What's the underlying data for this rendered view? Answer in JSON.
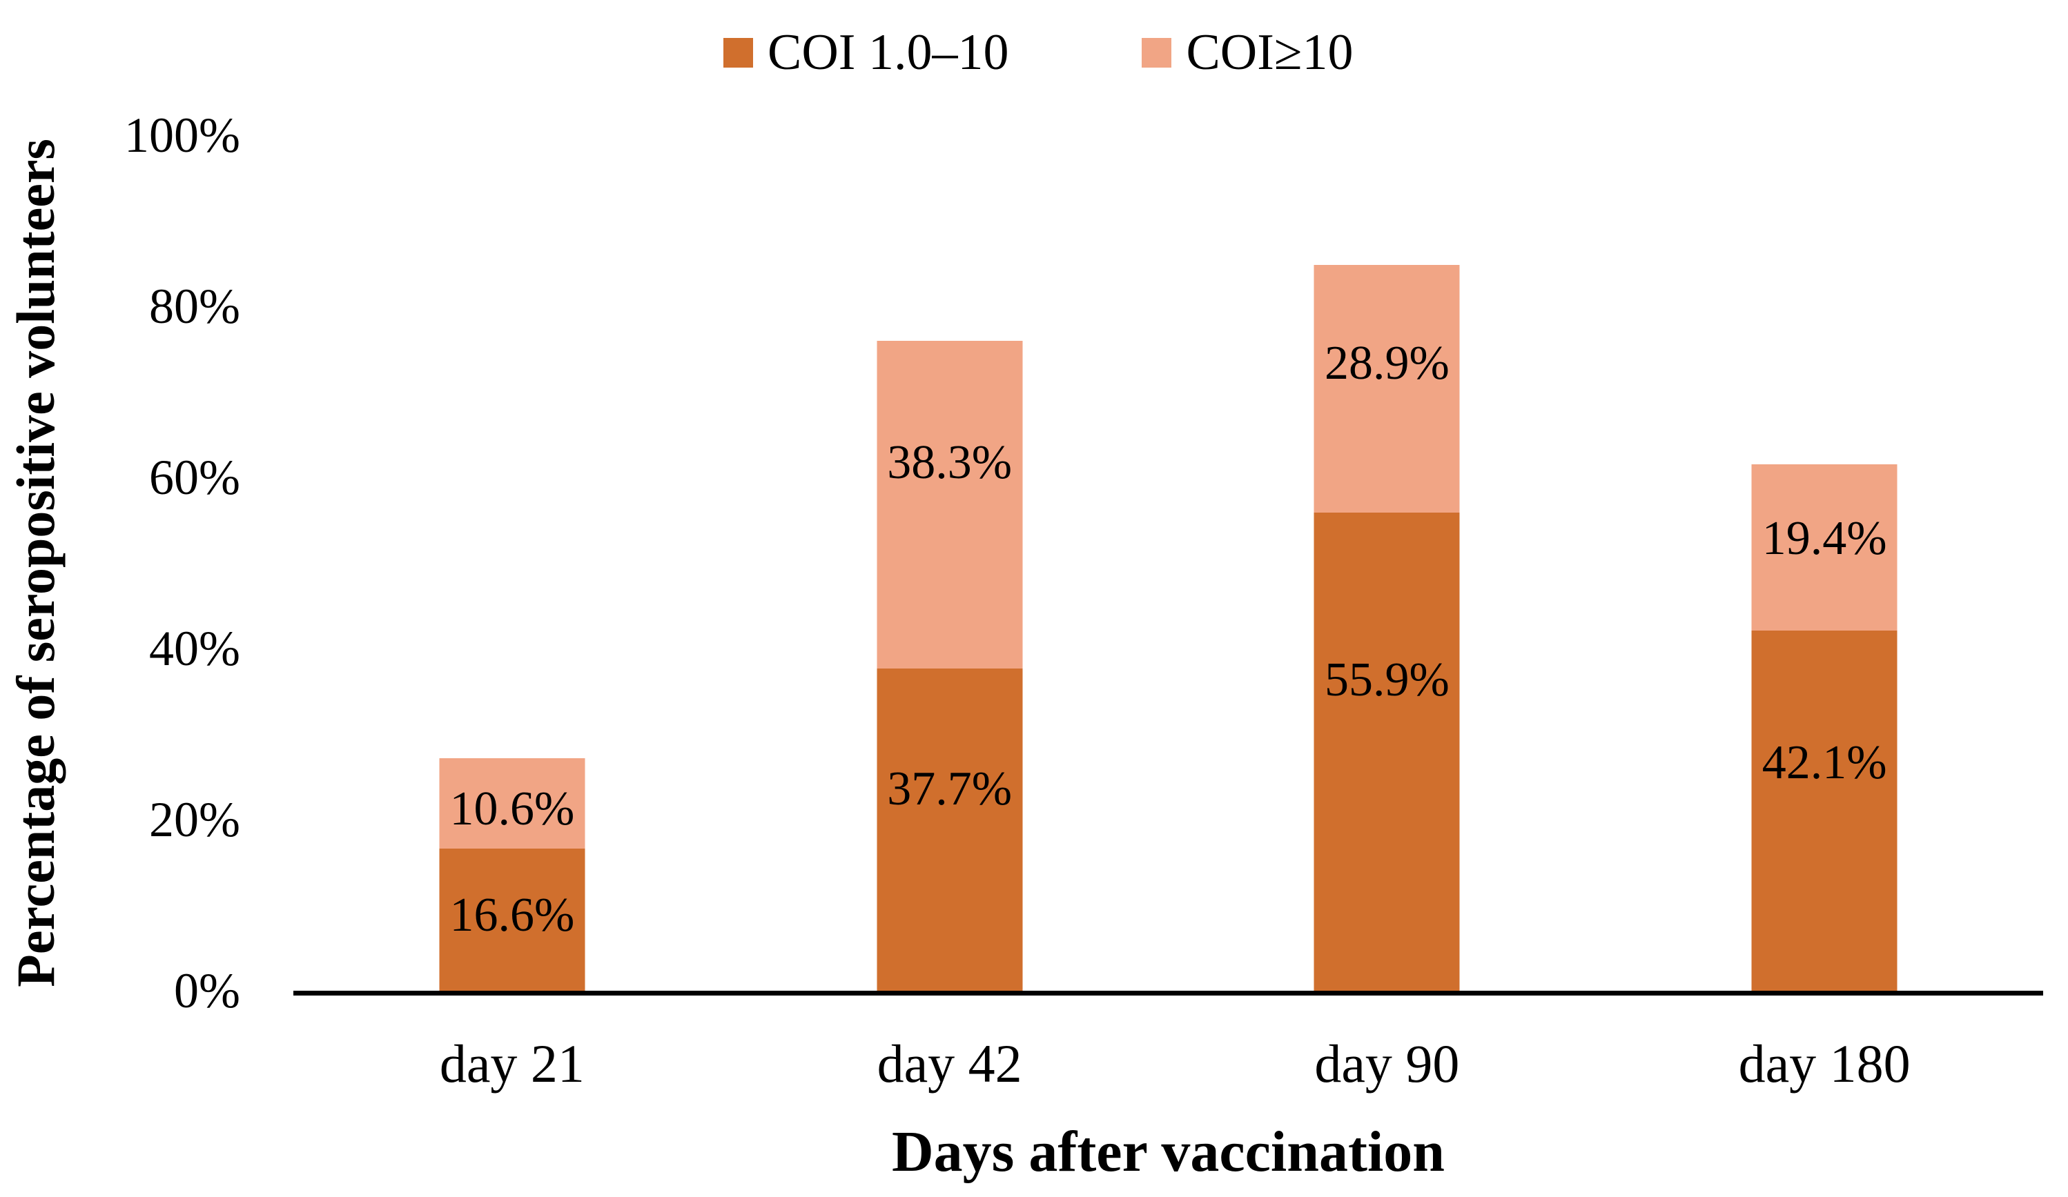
{
  "chart_data": {
    "type": "bar",
    "stacked": true,
    "title": "",
    "xlabel": "Days after vaccination",
    "ylabel": "Percentage of seropositive volunteers",
    "categories": [
      "day 21",
      "day 42",
      "day 90",
      "day 180"
    ],
    "series": [
      {
        "name": "COI 1.0–10",
        "color": "#D06F2D",
        "values": [
          16.6,
          37.7,
          55.9,
          42.1
        ],
        "labels": [
          "16.6%",
          "37.7%",
          "55.9%",
          "42.1%"
        ]
      },
      {
        "name": "COI≥10",
        "color": "#F1A585",
        "values": [
          10.6,
          38.3,
          28.9,
          19.4
        ],
        "labels": [
          "10.6%",
          "38.3%",
          "28.9%",
          "19.4%"
        ]
      }
    ],
    "totals": [
      27.2,
      76.0,
      84.8,
      61.5
    ],
    "ylim": [
      0,
      100
    ],
    "yticks": [
      "0%",
      "20%",
      "40%",
      "60%",
      "80%",
      "100%"
    ],
    "grid": false,
    "legend_position": "top-center",
    "axis_color": "#000000",
    "label_color": "#000000"
  }
}
